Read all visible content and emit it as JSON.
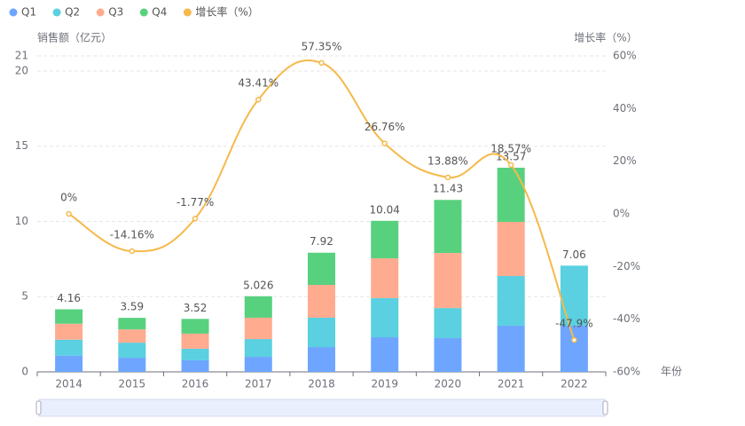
{
  "chart_data": {
    "type": "bar",
    "y_label": "销售额（亿元）",
    "y2_label": "增长率（%）",
    "x_label": "年份",
    "categories": [
      "2014",
      "2015",
      "2016",
      "2017",
      "2018",
      "2019",
      "2020",
      "2021",
      "2022"
    ],
    "series": [
      {
        "name": "Q1",
        "type": "bar",
        "color": "#6ea6ff",
        "values": [
          1.08,
          0.94,
          0.77,
          1.0,
          1.65,
          2.3,
          2.24,
          3.07,
          3.07
        ]
      },
      {
        "name": "Q2",
        "type": "bar",
        "color": "#5ad0e0",
        "values": [
          1.06,
          1.0,
          0.77,
          1.18,
          1.95,
          2.6,
          2.0,
          3.3,
          3.99
        ]
      },
      {
        "name": "Q3",
        "type": "bar",
        "color": "#ffab8f",
        "values": [
          1.06,
          0.88,
          1.0,
          1.42,
          2.18,
          2.65,
          3.66,
          3.6,
          0
        ]
      },
      {
        "name": "Q4",
        "type": "bar",
        "color": "#58d17f",
        "values": [
          0.96,
          0.77,
          0.98,
          1.426,
          2.14,
          2.49,
          3.53,
          3.6,
          0
        ]
      },
      {
        "name": "增长率（%）",
        "type": "line",
        "axis": "y2",
        "color": "#f5b94c",
        "values": [
          0,
          -14.16,
          -1.77,
          43.41,
          57.35,
          26.76,
          13.88,
          18.57,
          -47.9
        ],
        "value_labels": [
          "0%",
          "-14.16%",
          "-1.77%",
          "43.41%",
          "57.35%",
          "26.76%",
          "13.88%",
          "18.57%",
          "-47.9%"
        ]
      }
    ],
    "totals": [
      4.16,
      3.59,
      3.52,
      5.026,
      7.92,
      10.04,
      11.43,
      13.57,
      7.06
    ],
    "ylim": [
      0,
      21
    ],
    "yticks": [
      0,
      5,
      10,
      15,
      20,
      21
    ],
    "y2lim": [
      -60,
      60
    ],
    "y2ticks": [
      {
        "value": -60,
        "label": "-60%"
      },
      {
        "value": -40,
        "label": "-40%"
      },
      {
        "value": -20,
        "label": "-20%"
      },
      {
        "value": 0,
        "label": "0%"
      },
      {
        "value": 20,
        "label": "20%"
      },
      {
        "value": 40,
        "label": "40%"
      },
      {
        "value": 60,
        "label": "60%"
      }
    ],
    "grid": true
  }
}
